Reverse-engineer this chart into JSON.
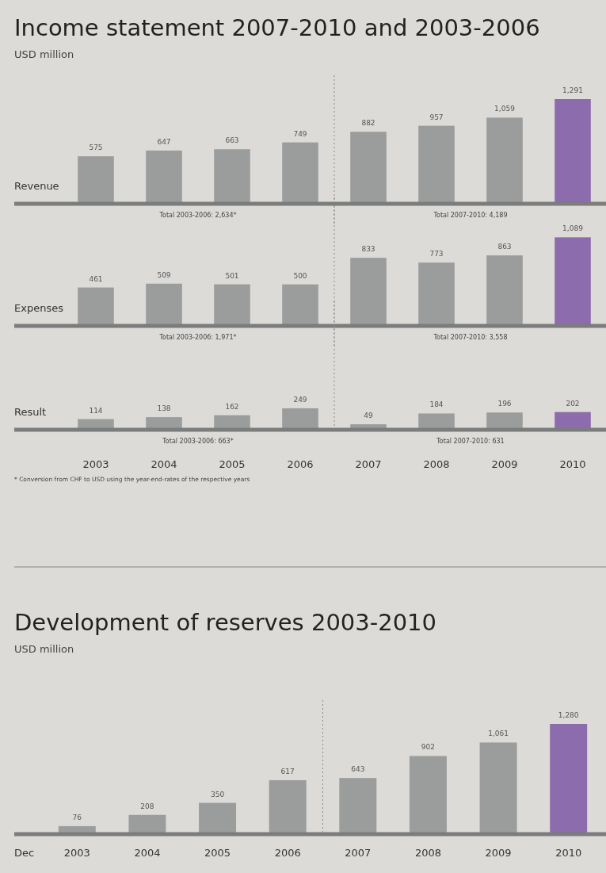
{
  "chart_data": [
    {
      "type": "bar",
      "title": "Income statement 2007-2010 and 2003-2006",
      "subtitle": "USD million",
      "ylabel": "Revenue",
      "categories": [
        null,
        null,
        null,
        null,
        null,
        null,
        null,
        null
      ],
      "values": [
        575,
        647,
        663,
        749,
        882,
        957,
        1059,
        1291
      ],
      "value_labels": [
        "575",
        "647",
        "663",
        "749",
        "882",
        "957",
        "1,059",
        "1,291"
      ],
      "colors": [
        "#9b9c9c",
        "#9b9c9c",
        "#9b9c9c",
        "#9b9c9c",
        "#9b9c9c",
        "#9b9c9c",
        "#9b9c9c",
        "#8c6cac"
      ],
      "annotations": [
        "Total 2003-2006: 2,634*",
        "Total 2007-2010: 4,189"
      ],
      "tick_labels": false
    },
    {
      "type": "bar",
      "ylabel": "Expenses",
      "categories": [
        null,
        null,
        null,
        null,
        null,
        null,
        null,
        null
      ],
      "values": [
        461,
        509,
        501,
        500,
        833,
        773,
        863,
        1089
      ],
      "value_labels": [
        "461",
        "509",
        "501",
        "500",
        "833",
        "773",
        "863",
        "1,089"
      ],
      "colors": [
        "#9b9c9c",
        "#9b9c9c",
        "#9b9c9c",
        "#9b9c9c",
        "#9b9c9c",
        "#9b9c9c",
        "#9b9c9c",
        "#8c6cac"
      ],
      "annotations": [
        "Total 2003-2006: 1,971*",
        "Total 2007-2010: 3,558"
      ],
      "tick_labels": false
    },
    {
      "type": "bar",
      "ylabel": "Result",
      "categories": [
        "2003",
        "2004",
        "2005",
        "2006",
        "2007",
        "2008",
        "2009",
        "2010"
      ],
      "values": [
        114,
        138,
        162,
        249,
        49,
        184,
        196,
        202
      ],
      "value_labels": [
        "114",
        "138",
        "162",
        "249",
        "49",
        "184",
        "196",
        "202"
      ],
      "colors": [
        "#9b9c9c",
        "#9b9c9c",
        "#9b9c9c",
        "#9b9c9c",
        "#9b9c9c",
        "#9b9c9c",
        "#9b9c9c",
        "#8c6cac"
      ],
      "annotations": [
        "Total 2003-2006: 663*",
        "Total 2007-2010: 631",
        "* Conversion from CHF to USD using the year-end-rates of the respective years"
      ],
      "tick_labels": "x"
    },
    {
      "type": "bar",
      "title": "Development of reserves 2003-2010",
      "subtitle": "USD million",
      "xlabel": "Dec",
      "categories": [
        "2003",
        "2004",
        "2005",
        "2006",
        "2007",
        "2008",
        "2009",
        "2010"
      ],
      "values": [
        76,
        208,
        350,
        617,
        643,
        902,
        1061,
        1280
      ],
      "value_labels": [
        "76",
        "208",
        "350",
        "617",
        "643",
        "902",
        "1,061",
        "1,280"
      ],
      "colors": [
        "#9b9c9c",
        "#9b9c9c",
        "#9b9c9c",
        "#9b9c9c",
        "#9b9c9c",
        "#9b9c9c",
        "#9b9c9c",
        "#8c6cac"
      ],
      "tick_labels": "x"
    }
  ]
}
